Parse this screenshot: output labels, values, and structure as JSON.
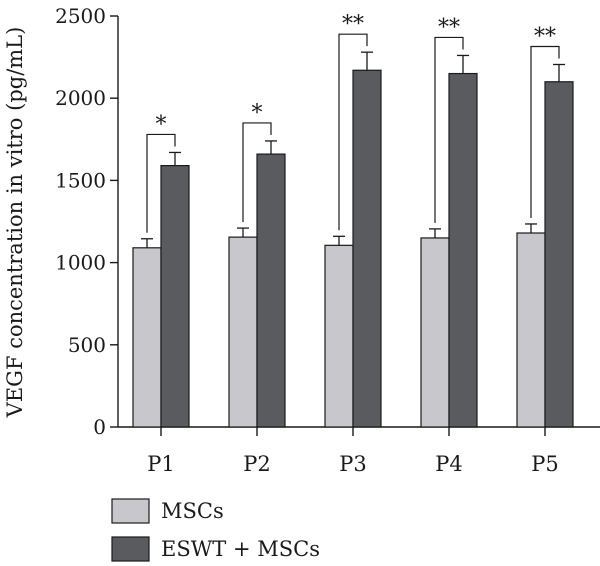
{
  "chart_data": {
    "type": "bar",
    "title": "",
    "xlabel": "",
    "ylabel": "VEGF concentration in vitro (pg/mL)",
    "ylim": [
      0,
      2500
    ],
    "yticks": [
      "0",
      "500",
      "1000",
      "1500",
      "2000",
      "2500"
    ],
    "categories": [
      "P1",
      "P2",
      "P3",
      "P4",
      "P5"
    ],
    "series": [
      {
        "name": "MSCs",
        "color": "#c8c8cc",
        "values": [
          1090,
          1155,
          1105,
          1150,
          1180
        ],
        "errors": [
          55,
          55,
          55,
          55,
          55
        ]
      },
      {
        "name": "ESWT + MSCs",
        "color": "#5a5b5f",
        "values": [
          1590,
          1660,
          2170,
          2150,
          2100
        ],
        "errors": [
          80,
          80,
          110,
          110,
          105
        ]
      }
    ],
    "significance": [
      "*",
      "*",
      "**",
      "**",
      "**"
    ],
    "legend_position": "bottom-left"
  }
}
